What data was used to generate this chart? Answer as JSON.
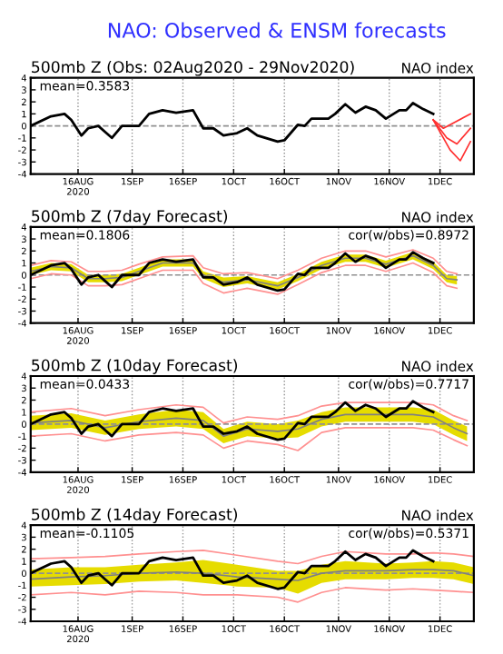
{
  "chart_data": [
    {
      "type": "line",
      "title": "NAO: Observed & ENSM forecasts",
      "subtitle": "500mb Z (Obs: 02Aug2020 - 29Nov2020)",
      "annotations": [
        "NAO index",
        "mean=0.3583"
      ],
      "xlim": [
        "2020-08-02",
        "2020-12-11"
      ],
      "ylim": [
        -4,
        4
      ],
      "yticks": [
        -4,
        -3,
        -2,
        -1,
        0,
        1,
        2,
        3,
        4
      ],
      "xticks": [
        {
          "value": "2020-08-16",
          "label": "16AUG\n2020"
        },
        {
          "value": "2020-09-01",
          "label": "1SEP"
        },
        {
          "value": "2020-09-16",
          "label": "16SEP"
        },
        {
          "value": "2020-10-01",
          "label": "1OCT"
        },
        {
          "value": "2020-10-16",
          "label": "16OCT"
        },
        {
          "value": "2020-11-01",
          "label": "1NOV"
        },
        {
          "value": "2020-11-16",
          "label": "16NOV"
        },
        {
          "value": "2020-12-01",
          "label": "1DEC"
        }
      ],
      "grid": "x",
      "ref_lines": [
        {
          "axis": "y",
          "value": 0,
          "color": "#909090",
          "line_style": "dashed"
        }
      ],
      "series": [
        {
          "color": "#000000",
          "x": [
            "2020-08-02",
            "2020-08-08",
            "2020-08-12",
            "2020-08-14",
            "2020-08-17",
            "2020-08-19",
            "2020-08-22",
            "2020-08-24",
            "2020-08-26",
            "2020-08-29",
            "2020-09-03",
            "2020-09-06",
            "2020-09-10",
            "2020-09-14",
            "2020-09-19",
            "2020-09-22",
            "2020-09-25",
            "2020-09-28",
            "2020-10-02",
            "2020-10-05",
            "2020-10-08",
            "2020-10-14",
            "2020-10-16",
            "2020-10-20",
            "2020-10-22",
            "2020-10-24",
            "2020-10-27",
            "2020-10-29",
            "2020-10-31",
            "2020-11-03",
            "2020-11-06",
            "2020-11-09",
            "2020-11-12",
            "2020-11-15",
            "2020-11-19",
            "2020-11-21",
            "2020-11-23",
            "2020-11-26",
            "2020-11-29"
          ],
          "values": [
            0.0,
            0.8,
            1.0,
            0.5,
            -0.8,
            -0.2,
            0.0,
            -0.5,
            -1.0,
            0.0,
            0.0,
            1.0,
            1.3,
            1.1,
            1.3,
            -0.2,
            -0.2,
            -0.8,
            -0.6,
            -0.2,
            -0.8,
            -1.3,
            -1.2,
            0.1,
            0.0,
            0.6,
            0.6,
            0.6,
            1.0,
            1.8,
            1.1,
            1.6,
            1.3,
            0.6,
            1.3,
            1.3,
            1.9,
            1.4,
            1.0
          ]
        },
        {
          "color": "#ff3030",
          "x": [
            "2020-11-29",
            "2020-12-02",
            "2020-12-10"
          ],
          "values": [
            0.5,
            -0.2,
            1.0
          ]
        },
        {
          "color": "#ff3030",
          "x": [
            "2020-11-29",
            "2020-12-03",
            "2020-12-06",
            "2020-12-10"
          ],
          "values": [
            0.5,
            -1.0,
            -1.5,
            -0.2
          ]
        },
        {
          "color": "#ff3030",
          "x": [
            "2020-11-29",
            "2020-12-04",
            "2020-12-07",
            "2020-12-10"
          ],
          "values": [
            0.5,
            -2.0,
            -2.9,
            -1.3
          ]
        }
      ]
    },
    {
      "type": "line",
      "subtitle": "500mb Z (7day Forecast)",
      "annotations": [
        "NAO index",
        "mean=0.1806",
        "cor(w/obs)=0.8972"
      ],
      "xlim": [
        "2020-08-02",
        "2020-12-11"
      ],
      "ylim": [
        -4,
        4
      ],
      "yticks": [
        -4,
        -3,
        -2,
        -1,
        0,
        1,
        2,
        3,
        4
      ],
      "xticks": [
        {
          "value": "2020-08-16",
          "label": "16AUG\n2020"
        },
        {
          "value": "2020-09-01",
          "label": "1SEP"
        },
        {
          "value": "2020-09-16",
          "label": "16SEP"
        },
        {
          "value": "2020-10-01",
          "label": "1OCT"
        },
        {
          "value": "2020-10-16",
          "label": "16OCT"
        },
        {
          "value": "2020-11-01",
          "label": "1NOV"
        },
        {
          "value": "2020-11-16",
          "label": "16NOV"
        },
        {
          "value": "2020-12-01",
          "label": "1DEC"
        }
      ],
      "grid": "x",
      "ref_lines": [
        {
          "axis": "y",
          "value": 0,
          "color": "#909090",
          "line_style": "dashed"
        }
      ],
      "series": [
        {
          "color": "#ff9090",
          "x": [
            "2020-08-02",
            "2020-08-08",
            "2020-08-14",
            "2020-08-19",
            "2020-08-24",
            "2020-08-29",
            "2020-09-03",
            "2020-09-10",
            "2020-09-19",
            "2020-09-22",
            "2020-09-28",
            "2020-10-05",
            "2020-10-14",
            "2020-10-20",
            "2020-10-27",
            "2020-11-03",
            "2020-11-09",
            "2020-11-15",
            "2020-11-23",
            "2020-11-29",
            "2020-12-03",
            "2020-12-06"
          ],
          "values": [
            0.8,
            1.2,
            1.1,
            0.3,
            0.3,
            0.4,
            0.9,
            1.5,
            1.6,
            0.6,
            0.1,
            0.2,
            -0.3,
            0.4,
            1.4,
            2.0,
            2.0,
            1.5,
            2.1,
            1.4,
            0.3,
            0.1
          ]
        },
        {
          "color": "#ff9090",
          "x": [
            "2020-08-02",
            "2020-08-08",
            "2020-08-14",
            "2020-08-19",
            "2020-08-24",
            "2020-08-29",
            "2020-09-03",
            "2020-09-10",
            "2020-09-19",
            "2020-09-22",
            "2020-09-28",
            "2020-10-05",
            "2020-10-14",
            "2020-10-20",
            "2020-10-27",
            "2020-11-03",
            "2020-11-09",
            "2020-11-15",
            "2020-11-23",
            "2020-11-29",
            "2020-12-03",
            "2020-12-06"
          ],
          "values": [
            -0.3,
            0.1,
            0.0,
            -0.9,
            -0.9,
            -0.8,
            -0.3,
            0.4,
            0.4,
            -0.7,
            -1.5,
            -1.1,
            -1.6,
            -0.8,
            0.2,
            0.8,
            0.8,
            0.3,
            1.0,
            0.2,
            -0.9,
            -1.1
          ]
        },
        {
          "color": "#808080",
          "x": [
            "2020-08-02",
            "2020-08-08",
            "2020-08-14",
            "2020-08-19",
            "2020-08-24",
            "2020-08-29",
            "2020-09-03",
            "2020-09-10",
            "2020-09-19",
            "2020-09-22",
            "2020-09-28",
            "2020-10-05",
            "2020-10-14",
            "2020-10-20",
            "2020-10-27",
            "2020-11-03",
            "2020-11-09",
            "2020-11-15",
            "2020-11-23",
            "2020-11-29",
            "2020-12-03",
            "2020-12-06"
          ],
          "values": [
            0.3,
            0.7,
            0.6,
            -0.3,
            -0.3,
            -0.2,
            0.3,
            1.0,
            1.0,
            0.0,
            -0.6,
            -0.4,
            -0.9,
            -0.2,
            0.8,
            1.4,
            1.4,
            0.9,
            1.6,
            0.8,
            -0.3,
            -0.4
          ],
          "lower": [
            0.0,
            0.4,
            0.3,
            -0.6,
            -0.6,
            -0.5,
            0.0,
            0.7,
            0.7,
            -0.3,
            -1.0,
            -0.7,
            -1.2,
            -0.5,
            0.5,
            1.1,
            1.1,
            0.6,
            1.3,
            0.5,
            -0.6,
            -0.8
          ],
          "upper": [
            0.6,
            1.0,
            0.9,
            0.0,
            0.0,
            0.1,
            0.6,
            1.3,
            1.3,
            0.3,
            -0.2,
            -0.1,
            -0.6,
            0.1,
            1.1,
            1.7,
            1.7,
            1.2,
            1.9,
            1.1,
            0.0,
            -0.1
          ]
        },
        {
          "color": "#000000",
          "x": [
            "2020-08-02",
            "2020-08-08",
            "2020-08-12",
            "2020-08-14",
            "2020-08-17",
            "2020-08-19",
            "2020-08-22",
            "2020-08-24",
            "2020-08-26",
            "2020-08-29",
            "2020-09-03",
            "2020-09-06",
            "2020-09-10",
            "2020-09-14",
            "2020-09-19",
            "2020-09-22",
            "2020-09-25",
            "2020-09-28",
            "2020-10-02",
            "2020-10-05",
            "2020-10-08",
            "2020-10-14",
            "2020-10-16",
            "2020-10-20",
            "2020-10-22",
            "2020-10-24",
            "2020-10-27",
            "2020-10-29",
            "2020-10-31",
            "2020-11-03",
            "2020-11-06",
            "2020-11-09",
            "2020-11-12",
            "2020-11-15",
            "2020-11-19",
            "2020-11-21",
            "2020-11-23",
            "2020-11-26",
            "2020-11-29"
          ],
          "values": [
            0.0,
            0.8,
            1.0,
            0.5,
            -0.8,
            -0.2,
            0.0,
            -0.5,
            -1.0,
            0.0,
            0.0,
            1.0,
            1.3,
            1.1,
            1.3,
            -0.2,
            -0.2,
            -0.8,
            -0.6,
            -0.2,
            -0.8,
            -1.3,
            -1.2,
            0.1,
            0.0,
            0.6,
            0.6,
            0.6,
            1.0,
            1.8,
            1.1,
            1.6,
            1.3,
            0.6,
            1.3,
            1.3,
            1.9,
            1.4,
            1.0
          ]
        }
      ]
    },
    {
      "type": "line",
      "subtitle": "500mb Z (10day Forecast)",
      "annotations": [
        "NAO index",
        "mean=0.0433",
        "cor(w/obs)=0.7717"
      ],
      "xlim": [
        "2020-08-02",
        "2020-12-11"
      ],
      "ylim": [
        -4,
        4
      ],
      "yticks": [
        -4,
        -3,
        -2,
        -1,
        0,
        1,
        2,
        3,
        4
      ],
      "xticks": [
        {
          "value": "2020-08-16",
          "label": "16AUG\n2020"
        },
        {
          "value": "2020-09-01",
          "label": "1SEP"
        },
        {
          "value": "2020-09-16",
          "label": "16SEP"
        },
        {
          "value": "2020-10-01",
          "label": "1OCT"
        },
        {
          "value": "2020-10-16",
          "label": "16OCT"
        },
        {
          "value": "2020-11-01",
          "label": "1NOV"
        },
        {
          "value": "2020-11-16",
          "label": "16NOV"
        },
        {
          "value": "2020-12-01",
          "label": "1DEC"
        }
      ],
      "grid": "x",
      "ref_lines": [
        {
          "axis": "y",
          "value": 0,
          "color": "#909090",
          "line_style": "dashed"
        }
      ],
      "series": [
        {
          "color": "#ff9090",
          "x": [
            "2020-08-02",
            "2020-08-14",
            "2020-08-24",
            "2020-09-03",
            "2020-09-14",
            "2020-09-22",
            "2020-09-28",
            "2020-10-05",
            "2020-10-14",
            "2020-10-20",
            "2020-10-27",
            "2020-11-03",
            "2020-11-12",
            "2020-11-23",
            "2020-11-29",
            "2020-12-05",
            "2020-12-09"
          ],
          "values": [
            1.0,
            1.3,
            0.7,
            1.2,
            1.6,
            1.4,
            0.1,
            0.6,
            0.4,
            0.7,
            1.5,
            1.8,
            1.8,
            1.8,
            1.6,
            0.7,
            0.3
          ]
        },
        {
          "color": "#ff9090",
          "x": [
            "2020-08-02",
            "2020-08-14",
            "2020-08-24",
            "2020-09-03",
            "2020-09-14",
            "2020-09-22",
            "2020-09-28",
            "2020-10-05",
            "2020-10-14",
            "2020-10-20",
            "2020-10-27",
            "2020-11-03",
            "2020-11-12",
            "2020-11-23",
            "2020-11-29",
            "2020-12-05",
            "2020-12-09"
          ],
          "values": [
            -1.0,
            -0.8,
            -1.4,
            -0.9,
            -0.7,
            -0.9,
            -2.0,
            -1.4,
            -1.7,
            -2.2,
            -0.7,
            -0.3,
            -0.3,
            -0.3,
            -0.5,
            -1.3,
            -1.8
          ]
        },
        {
          "color": "#808080",
          "x": [
            "2020-08-02",
            "2020-08-14",
            "2020-08-24",
            "2020-09-03",
            "2020-09-14",
            "2020-09-22",
            "2020-09-28",
            "2020-10-05",
            "2020-10-14",
            "2020-10-20",
            "2020-10-27",
            "2020-11-03",
            "2020-11-12",
            "2020-11-23",
            "2020-11-29",
            "2020-12-05",
            "2020-12-09"
          ],
          "values": [
            0.1,
            0.3,
            -0.3,
            0.2,
            0.5,
            0.3,
            -1.0,
            -0.4,
            -0.6,
            -0.4,
            0.4,
            0.8,
            0.8,
            0.8,
            0.6,
            -0.3,
            -0.8
          ],
          "lower": [
            -0.5,
            -0.3,
            -0.9,
            -0.4,
            -0.2,
            -0.4,
            -1.6,
            -1.0,
            -1.2,
            -1.1,
            -0.2,
            0.2,
            0.2,
            0.2,
            0.0,
            -0.9,
            -1.4
          ],
          "upper": [
            0.7,
            0.9,
            0.3,
            0.8,
            1.2,
            1.0,
            -0.4,
            0.2,
            0.0,
            0.3,
            1.0,
            1.4,
            1.4,
            1.4,
            1.2,
            0.3,
            -0.2
          ]
        },
        {
          "color": "#000000",
          "x": [
            "2020-08-02",
            "2020-08-08",
            "2020-08-12",
            "2020-08-14",
            "2020-08-17",
            "2020-08-19",
            "2020-08-22",
            "2020-08-24",
            "2020-08-26",
            "2020-08-29",
            "2020-09-03",
            "2020-09-06",
            "2020-09-10",
            "2020-09-14",
            "2020-09-19",
            "2020-09-22",
            "2020-09-25",
            "2020-09-28",
            "2020-10-02",
            "2020-10-05",
            "2020-10-08",
            "2020-10-14",
            "2020-10-16",
            "2020-10-20",
            "2020-10-22",
            "2020-10-24",
            "2020-10-27",
            "2020-10-29",
            "2020-10-31",
            "2020-11-03",
            "2020-11-06",
            "2020-11-09",
            "2020-11-12",
            "2020-11-15",
            "2020-11-19",
            "2020-11-21",
            "2020-11-23",
            "2020-11-26",
            "2020-11-29"
          ],
          "values": [
            0.0,
            0.8,
            1.0,
            0.5,
            -0.8,
            -0.2,
            0.0,
            -0.5,
            -1.0,
            0.0,
            0.0,
            1.0,
            1.3,
            1.1,
            1.3,
            -0.2,
            -0.2,
            -0.8,
            -0.6,
            -0.2,
            -0.8,
            -1.3,
            -1.2,
            0.1,
            0.0,
            0.6,
            0.6,
            0.6,
            1.0,
            1.8,
            1.1,
            1.6,
            1.3,
            0.6,
            1.3,
            1.3,
            1.9,
            1.4,
            1.0
          ]
        }
      ]
    },
    {
      "type": "line",
      "subtitle": "500mb Z (14day Forecast)",
      "annotations": [
        "NAO index",
        "mean=-0.1105",
        "cor(w/obs)=0.5371"
      ],
      "xlim": [
        "2020-08-02",
        "2020-12-11"
      ],
      "ylim": [
        -4,
        4
      ],
      "yticks": [
        -4,
        -3,
        -2,
        -1,
        0,
        1,
        2,
        3,
        4
      ],
      "xticks": [
        {
          "value": "2020-08-16",
          "label": "16AUG\n2020"
        },
        {
          "value": "2020-09-01",
          "label": "1SEP"
        },
        {
          "value": "2020-09-16",
          "label": "16SEP"
        },
        {
          "value": "2020-10-01",
          "label": "1OCT"
        },
        {
          "value": "2020-10-16",
          "label": "16OCT"
        },
        {
          "value": "2020-11-01",
          "label": "1NOV"
        },
        {
          "value": "2020-11-16",
          "label": "16NOV"
        },
        {
          "value": "2020-12-01",
          "label": "1DEC"
        }
      ],
      "grid": "x",
      "ref_lines": [
        {
          "axis": "y",
          "value": 0,
          "color": "#909090",
          "line_style": "dashed"
        }
      ],
      "series": [
        {
          "color": "#ff9090",
          "x": [
            "2020-08-02",
            "2020-08-14",
            "2020-08-24",
            "2020-09-03",
            "2020-09-14",
            "2020-09-22",
            "2020-10-02",
            "2020-10-14",
            "2020-10-20",
            "2020-10-27",
            "2020-11-03",
            "2020-11-15",
            "2020-11-23",
            "2020-11-29",
            "2020-12-05",
            "2020-12-11"
          ],
          "values": [
            1.2,
            1.3,
            1.4,
            1.6,
            1.8,
            1.9,
            1.5,
            1.0,
            0.8,
            1.4,
            1.8,
            1.6,
            1.6,
            1.7,
            1.6,
            1.4
          ]
        },
        {
          "color": "#ff9090",
          "x": [
            "2020-08-02",
            "2020-08-14",
            "2020-08-24",
            "2020-09-03",
            "2020-09-14",
            "2020-09-22",
            "2020-10-02",
            "2020-10-14",
            "2020-10-20",
            "2020-10-27",
            "2020-11-03",
            "2020-11-15",
            "2020-11-23",
            "2020-11-29",
            "2020-12-05",
            "2020-12-11"
          ],
          "values": [
            -1.8,
            -1.6,
            -1.8,
            -1.5,
            -1.6,
            -1.8,
            -1.8,
            -2.0,
            -2.4,
            -1.6,
            -1.2,
            -1.4,
            -1.3,
            -1.4,
            -1.5,
            -1.6
          ]
        },
        {
          "color": "#808080",
          "x": [
            "2020-08-02",
            "2020-08-14",
            "2020-08-24",
            "2020-09-03",
            "2020-09-14",
            "2020-09-22",
            "2020-10-02",
            "2020-10-14",
            "2020-10-20",
            "2020-10-27",
            "2020-11-03",
            "2020-11-15",
            "2020-11-23",
            "2020-11-29",
            "2020-12-05",
            "2020-12-11"
          ],
          "values": [
            -0.5,
            -0.3,
            -0.2,
            0.0,
            0.1,
            0.0,
            -0.3,
            -0.5,
            -0.6,
            0.0,
            0.2,
            0.2,
            0.3,
            0.3,
            0.2,
            -0.2
          ],
          "lower": [
            -1.1,
            -1.0,
            -0.9,
            -0.7,
            -0.6,
            -0.8,
            -1.1,
            -1.2,
            -1.7,
            -0.8,
            -0.5,
            -0.5,
            -0.4,
            -0.4,
            -0.5,
            -0.9
          ],
          "upper": [
            0.3,
            0.5,
            0.5,
            0.7,
            0.9,
            1.1,
            0.7,
            0.2,
            0.2,
            0.7,
            1.0,
            0.8,
            0.9,
            1.0,
            0.9,
            0.5
          ]
        },
        {
          "color": "#000000",
          "x": [
            "2020-08-02",
            "2020-08-08",
            "2020-08-12",
            "2020-08-14",
            "2020-08-17",
            "2020-08-19",
            "2020-08-22",
            "2020-08-24",
            "2020-08-26",
            "2020-08-29",
            "2020-09-03",
            "2020-09-06",
            "2020-09-10",
            "2020-09-14",
            "2020-09-19",
            "2020-09-22",
            "2020-09-25",
            "2020-09-28",
            "2020-10-02",
            "2020-10-05",
            "2020-10-08",
            "2020-10-14",
            "2020-10-16",
            "2020-10-20",
            "2020-10-22",
            "2020-10-24",
            "2020-10-27",
            "2020-10-29",
            "2020-10-31",
            "2020-11-03",
            "2020-11-06",
            "2020-11-09",
            "2020-11-12",
            "2020-11-15",
            "2020-11-19",
            "2020-11-21",
            "2020-11-23",
            "2020-11-26",
            "2020-11-29"
          ],
          "values": [
            0.0,
            0.8,
            1.0,
            0.5,
            -0.8,
            -0.2,
            0.0,
            -0.5,
            -1.0,
            0.0,
            0.0,
            1.0,
            1.3,
            1.1,
            1.3,
            -0.2,
            -0.2,
            -0.8,
            -0.6,
            -0.2,
            -0.8,
            -1.3,
            -1.2,
            0.1,
            0.0,
            0.6,
            0.6,
            0.6,
            1.0,
            1.8,
            1.1,
            1.6,
            1.3,
            0.6,
            1.3,
            1.3,
            1.9,
            1.4,
            1.0
          ]
        }
      ]
    }
  ]
}
